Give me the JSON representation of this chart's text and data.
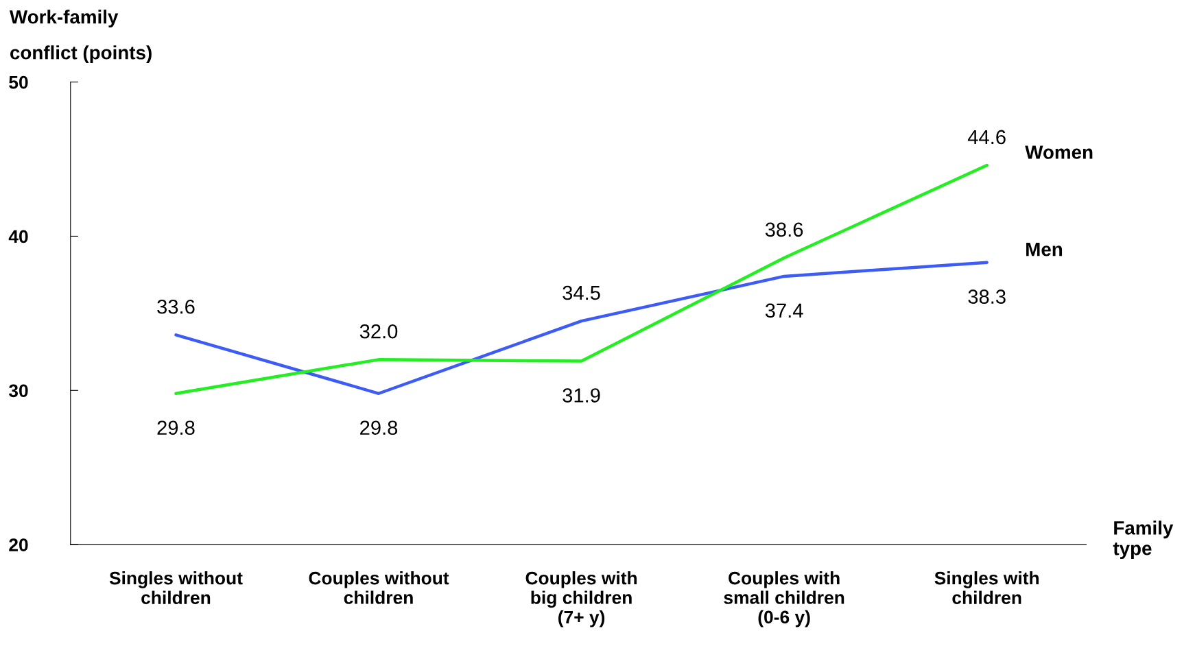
{
  "chart_data": {
    "type": "line",
    "ylabel": "Work-family\nconflict (points)",
    "xlabel": "Family\ntype",
    "categories": [
      "Singles without\nchildren",
      "Couples without\nchildren",
      "Couples with\nbig children\n(7+ y)",
      "Couples with\nsmall children\n(0-6 y)",
      "Singles with\nchildren"
    ],
    "series": [
      {
        "name": "Men",
        "color": "#3d5cf5",
        "values": [
          33.6,
          29.8,
          34.5,
          37.4,
          38.3
        ],
        "value_labels": [
          "33.6",
          "29.8",
          "34.5",
          "37.4",
          "38.3"
        ]
      },
      {
        "name": "Women",
        "color": "#22ee22",
        "values": [
          29.8,
          32.0,
          31.9,
          38.6,
          44.6
        ],
        "value_labels": [
          "29.8",
          "32.0",
          "31.9",
          "38.6",
          "44.6"
        ]
      }
    ],
    "ylim": [
      20,
      50
    ],
    "yticks": [
      20,
      30,
      40,
      50
    ],
    "grid": false,
    "legend": false,
    "marker": "none",
    "line_style": "solid"
  }
}
